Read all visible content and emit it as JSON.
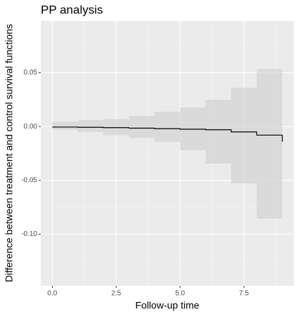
{
  "chart_data": {
    "type": "step",
    "title": "PP analysis",
    "xlabel": "Follow-up time",
    "ylabel": "Difference between treatment and control survival functions",
    "x": [
      0,
      1,
      2,
      3,
      4,
      5,
      6,
      7,
      8,
      9
    ],
    "series": [
      {
        "color": "#000000",
        "values": [
          -0.0005,
          -0.0007,
          -0.001,
          -0.0015,
          -0.002,
          -0.0025,
          -0.003,
          -0.005,
          -0.008,
          -0.014
        ]
      }
    ],
    "band": {
      "color": "#d3d3d3",
      "lower": [
        -0.003,
        -0.005,
        -0.008,
        -0.0105,
        -0.0143,
        -0.022,
        -0.0345,
        -0.053,
        -0.0854,
        -0.0854
      ],
      "upper": [
        0.0045,
        0.006,
        0.007,
        0.0098,
        0.0137,
        0.0176,
        0.025,
        0.036,
        0.0535,
        0.0535
      ]
    },
    "xlim": [
      -0.45,
      9.45
    ],
    "ylim": [
      -0.148,
      0.098
    ],
    "xticks": [
      {
        "value": 0,
        "label": "0.0"
      },
      {
        "value": 2.5,
        "label": "2.5"
      },
      {
        "value": 5,
        "label": "5.0"
      },
      {
        "value": 7.5,
        "label": "7.5"
      }
    ],
    "yticks": [
      0.05,
      {
        "value": 0,
        "label": "0.00"
      },
      -0.05,
      {
        "value": -0.1,
        "label": "-0.10"
      }
    ],
    "grid": true
  }
}
